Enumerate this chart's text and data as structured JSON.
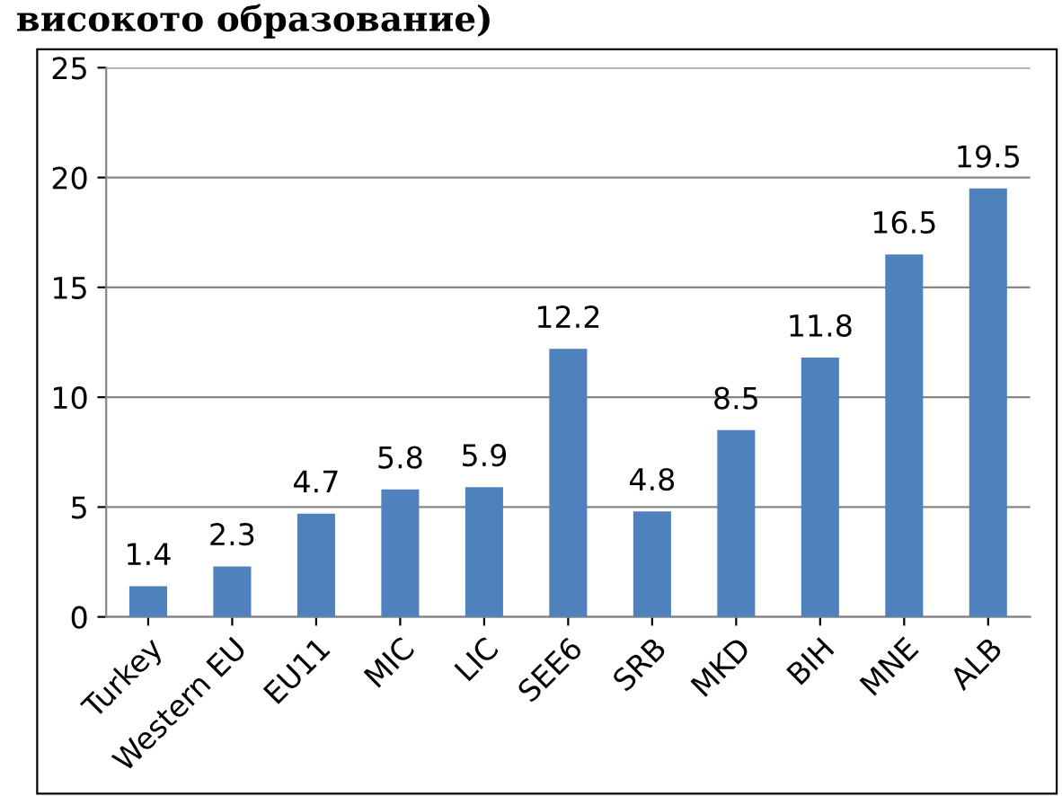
{
  "chart_data": {
    "type": "bar",
    "title": "високото образование)",
    "categories": [
      "Turkey",
      "Western EU",
      "EU11",
      "MIC",
      "LIC",
      "SEE6",
      "SRB",
      "MKD",
      "BIH",
      "MNE",
      "ALB"
    ],
    "values": [
      1.4,
      2.3,
      4.7,
      5.8,
      5.9,
      12.2,
      4.8,
      8.5,
      11.8,
      16.5,
      19.5
    ],
    "color": "#4f81bd",
    "ylim": [
      0,
      25
    ],
    "yticks": [
      0,
      5,
      10,
      15,
      20,
      25
    ],
    "grid": "y",
    "data_labels": true
  }
}
